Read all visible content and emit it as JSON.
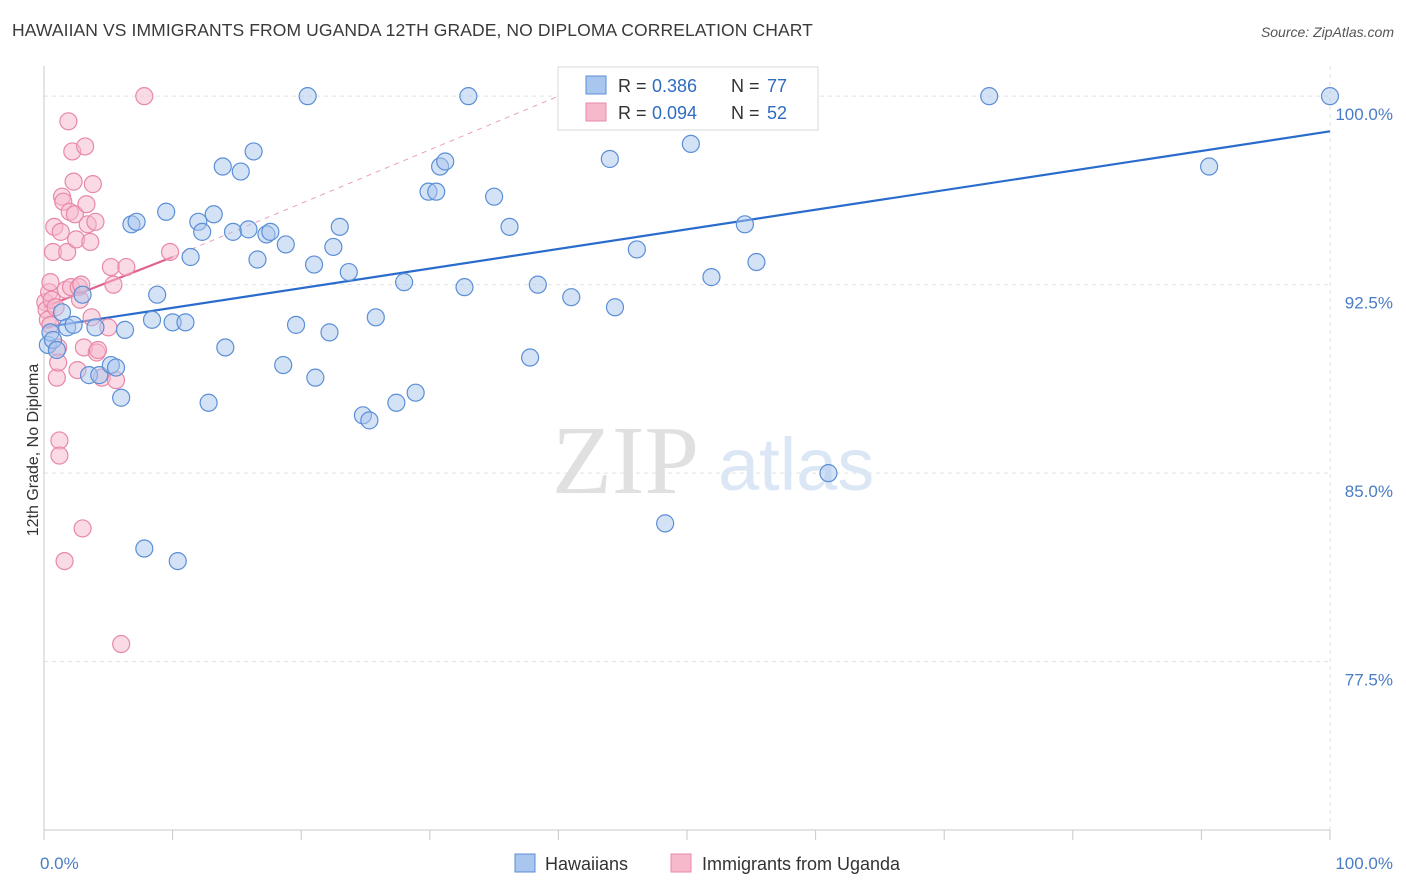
{
  "header": {
    "title": "HAWAIIAN VS IMMIGRANTS FROM UGANDA 12TH GRADE, NO DIPLOMA CORRELATION CHART",
    "source": "Source: ZipAtlas.com"
  },
  "watermark": {
    "zip": "ZIP",
    "atlas": "atlas"
  },
  "colors": {
    "blue_fill": "#a9c6ee",
    "blue_stroke": "#5b8fd6",
    "blue_line": "#2a6ccc",
    "pink_fill": "#f6b8cb",
    "pink_stroke": "#e888a8",
    "pink_line": "#e0628e",
    "grid": "#e2e2e2",
    "tick_text": "#4a7cc4"
  },
  "chart_data": {
    "type": "scatter",
    "title": "HAWAIIAN VS IMMIGRANTS FROM UGANDA 12TH GRADE, NO DIPLOMA CORRELATION CHART",
    "xlabel": "",
    "ylabel": "12th Grade, No Diploma",
    "xlim": [
      0,
      100
    ],
    "ylim": [
      70.8,
      101.2
    ],
    "x_tick_labels": [
      {
        "value": 0,
        "label": "0.0%"
      },
      {
        "value": 100,
        "label": "100.0%"
      }
    ],
    "y_ticks": [
      {
        "value": 100,
        "label": "100.0%"
      },
      {
        "value": 92.5,
        "label": "92.5%"
      },
      {
        "value": 85,
        "label": "85.0%"
      },
      {
        "value": 77.5,
        "label": "77.5%"
      }
    ],
    "legend_stats": [
      {
        "r_label": "R =",
        "r_value": "0.386",
        "n_label": "N =",
        "n_value": "77"
      },
      {
        "r_label": "R =",
        "r_value": "0.094",
        "n_label": "N =",
        "n_value": "52"
      }
    ],
    "series": [
      {
        "name": "Hawaiians",
        "trend": {
          "x1": 0,
          "y1": 90.8,
          "x2": 100,
          "y2": 98.6
        },
        "points": [
          [
            0.3,
            90.1
          ],
          [
            0.5,
            90.6
          ],
          [
            0.7,
            90.3
          ],
          [
            1.0,
            89.9
          ],
          [
            1.4,
            91.4
          ],
          [
            1.8,
            90.8
          ],
          [
            2.3,
            90.9
          ],
          [
            3.0,
            92.1
          ],
          [
            3.5,
            88.9
          ],
          [
            4.0,
            90.8
          ],
          [
            4.3,
            88.9
          ],
          [
            5.2,
            89.3
          ],
          [
            5.6,
            89.2
          ],
          [
            6.0,
            88.0
          ],
          [
            6.3,
            90.7
          ],
          [
            6.8,
            94.9
          ],
          [
            7.2,
            95.0
          ],
          [
            7.8,
            82.0
          ],
          [
            8.4,
            91.1
          ],
          [
            8.8,
            92.1
          ],
          [
            9.5,
            95.4
          ],
          [
            10.0,
            91.0
          ],
          [
            10.4,
            81.5
          ],
          [
            11.0,
            91.0
          ],
          [
            11.4,
            93.6
          ],
          [
            12.0,
            95.0
          ],
          [
            12.3,
            94.6
          ],
          [
            12.8,
            87.8
          ],
          [
            13.2,
            95.3
          ],
          [
            13.9,
            97.2
          ],
          [
            14.1,
            90.0
          ],
          [
            14.7,
            94.6
          ],
          [
            15.3,
            97.0
          ],
          [
            15.9,
            94.7
          ],
          [
            16.3,
            97.8
          ],
          [
            16.6,
            93.5
          ],
          [
            17.3,
            94.5
          ],
          [
            17.6,
            94.6
          ],
          [
            18.8,
            94.1
          ],
          [
            18.6,
            89.3
          ],
          [
            19.6,
            90.9
          ],
          [
            20.5,
            100.0
          ],
          [
            21.0,
            93.3
          ],
          [
            21.1,
            88.8
          ],
          [
            22.2,
            90.6
          ],
          [
            22.5,
            94.0
          ],
          [
            23.0,
            94.8
          ],
          [
            23.7,
            93.0
          ],
          [
            24.8,
            87.3
          ],
          [
            25.3,
            87.1
          ],
          [
            25.8,
            91.2
          ],
          [
            27.4,
            87.8
          ],
          [
            28.0,
            92.6
          ],
          [
            28.9,
            88.2
          ],
          [
            29.9,
            96.2
          ],
          [
            30.5,
            96.2
          ],
          [
            30.8,
            97.2
          ],
          [
            31.2,
            97.4
          ],
          [
            32.7,
            92.4
          ],
          [
            33.0,
            100.0
          ],
          [
            35.0,
            96.0
          ],
          [
            36.2,
            94.8
          ],
          [
            37.8,
            89.6
          ],
          [
            38.4,
            92.5
          ],
          [
            41.0,
            92.0
          ],
          [
            44.0,
            97.5
          ],
          [
            44.4,
            91.6
          ],
          [
            46.1,
            93.9
          ],
          [
            48.3,
            83.0
          ],
          [
            50.3,
            98.1
          ],
          [
            51.9,
            92.8
          ],
          [
            54.5,
            94.9
          ],
          [
            55.4,
            93.4
          ],
          [
            61.0,
            85.0
          ],
          [
            73.5,
            100.0
          ],
          [
            90.6,
            97.2
          ],
          [
            100.0,
            100.0
          ]
        ]
      },
      {
        "name": "Immigrants from Uganda",
        "trend": {
          "x1": 0,
          "y1": 91.6,
          "x2": 10,
          "y2": 93.6
        },
        "trend_ext": {
          "x1": 10,
          "y1": 93.6,
          "x2": 40,
          "y2": 100.0
        },
        "points": [
          [
            0.1,
            91.8
          ],
          [
            0.2,
            91.5
          ],
          [
            0.3,
            91.1
          ],
          [
            0.4,
            92.2
          ],
          [
            0.5,
            90.9
          ],
          [
            0.5,
            92.6
          ],
          [
            0.6,
            91.9
          ],
          [
            0.7,
            93.8
          ],
          [
            0.8,
            94.8
          ],
          [
            0.9,
            91.6
          ],
          [
            1.0,
            88.8
          ],
          [
            1.1,
            90.0
          ],
          [
            1.1,
            89.4
          ],
          [
            1.2,
            86.3
          ],
          [
            1.2,
            85.7
          ],
          [
            1.3,
            94.6
          ],
          [
            1.4,
            96.0
          ],
          [
            1.5,
            95.8
          ],
          [
            1.6,
            81.5
          ],
          [
            1.7,
            92.3
          ],
          [
            1.8,
            93.8
          ],
          [
            1.9,
            99.0
          ],
          [
            2.0,
            95.4
          ],
          [
            2.1,
            92.4
          ],
          [
            2.2,
            97.8
          ],
          [
            2.3,
            96.6
          ],
          [
            2.4,
            95.3
          ],
          [
            2.5,
            94.3
          ],
          [
            2.6,
            89.1
          ],
          [
            2.7,
            92.4
          ],
          [
            2.8,
            91.9
          ],
          [
            2.9,
            92.5
          ],
          [
            3.0,
            82.8
          ],
          [
            3.1,
            90.0
          ],
          [
            3.2,
            98.0
          ],
          [
            3.3,
            95.7
          ],
          [
            3.4,
            94.9
          ],
          [
            3.6,
            94.2
          ],
          [
            3.7,
            91.2
          ],
          [
            3.8,
            96.5
          ],
          [
            4.0,
            95.0
          ],
          [
            4.1,
            89.8
          ],
          [
            4.2,
            89.9
          ],
          [
            4.5,
            88.8
          ],
          [
            5.0,
            90.8
          ],
          [
            5.2,
            93.2
          ],
          [
            5.4,
            92.5
          ],
          [
            5.6,
            88.7
          ],
          [
            6.0,
            78.2
          ],
          [
            6.4,
            93.2
          ],
          [
            7.8,
            100.0
          ],
          [
            9.8,
            93.8
          ]
        ]
      }
    ],
    "bottom_legend": [
      {
        "label": "Hawaiians"
      },
      {
        "label": "Immigrants from Uganda"
      }
    ]
  }
}
